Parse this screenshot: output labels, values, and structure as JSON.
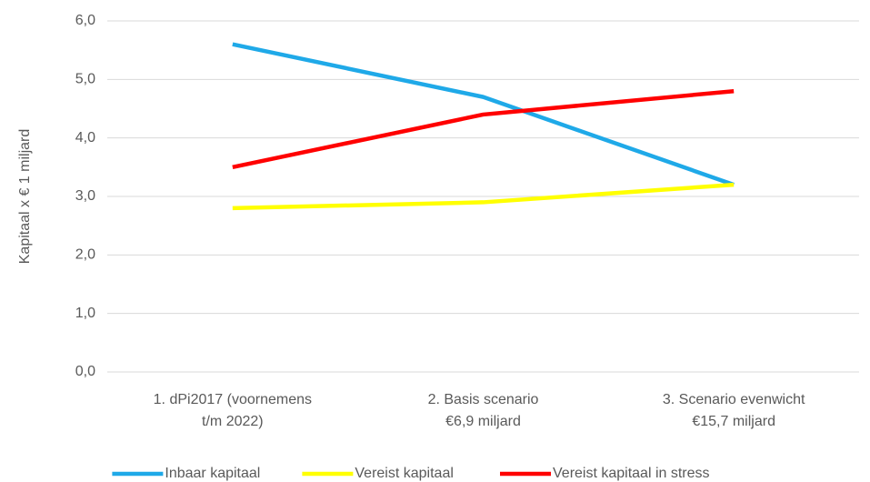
{
  "chart_data": {
    "type": "line",
    "y_label": "Kapitaal x € 1 miljard",
    "categories": [
      "1. dPi2017 (voornemens\nt/m 2022)",
      "2. Basis scenario\n€6,9 miljard",
      "3. Scenario evenwicht\n€15,7 miljard"
    ],
    "series": [
      {
        "name": "Inbaar kapitaal",
        "color": "#1fa9e8",
        "values": [
          5.6,
          4.7,
          3.2
        ]
      },
      {
        "name": "Vereist kapitaal",
        "color": "#ffff00",
        "values": [
          2.8,
          2.9,
          3.2
        ]
      },
      {
        "name": "Vereist kapitaal in stress",
        "color": "#ff0000",
        "values": [
          3.5,
          4.4,
          4.8
        ]
      }
    ],
    "ylim": [
      0,
      6
    ],
    "yticks": [
      {
        "value": 0,
        "label": "0,0"
      },
      {
        "value": 1,
        "label": "1,0"
      },
      {
        "value": 2,
        "label": "2,0"
      },
      {
        "value": 3,
        "label": "3,0"
      },
      {
        "value": 4,
        "label": "4,0"
      },
      {
        "value": 5,
        "label": "5,0"
      },
      {
        "value": 6,
        "label": "6,0"
      }
    ],
    "grid": true,
    "legend": "bottom"
  }
}
